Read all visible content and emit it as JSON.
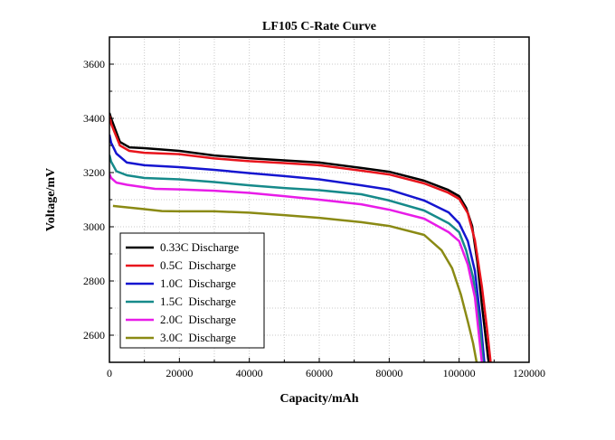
{
  "chart_data": {
    "type": "line",
    "title": "LF105 C-Rate Curve",
    "xlabel": "Capacity/mAh",
    "ylabel": "Voltage/mV",
    "xlim": [
      0,
      120000
    ],
    "ylim": [
      2500,
      3700
    ],
    "xticks": [
      0,
      20000,
      40000,
      60000,
      80000,
      100000,
      120000
    ],
    "yticks": [
      2600,
      2800,
      3000,
      3200,
      3400,
      3600
    ],
    "grid": true,
    "legend_position": "bottom-left",
    "series": [
      {
        "name": "0.33C Discharge",
        "color": "#000000",
        "x": [
          0,
          500,
          3000,
          5700,
          10000,
          20000,
          30000,
          40000,
          50000,
          60000,
          72000,
          80000,
          90000,
          96700,
          100000,
          102000,
          103700,
          105200,
          106500,
          108300,
          108500
        ],
        "y": [
          3420,
          3400,
          3313,
          3293,
          3290,
          3280,
          3263,
          3253,
          3245,
          3237,
          3217,
          3203,
          3170,
          3137,
          3113,
          3070,
          3003,
          2870,
          2713,
          2513,
          2500
        ]
      },
      {
        "name": "0.5C  Discharge",
        "color": "#e8141c",
        "x": [
          0,
          500,
          3000,
          5700,
          10000,
          20000,
          30000,
          40000,
          50000,
          60000,
          72000,
          80000,
          90000,
          96700,
          100000,
          102500,
          104500,
          106500,
          108000,
          109000
        ],
        "y": [
          3410,
          3380,
          3300,
          3280,
          3273,
          3268,
          3252,
          3242,
          3235,
          3227,
          3207,
          3193,
          3160,
          3127,
          3103,
          3050,
          2950,
          2780,
          2620,
          2500
        ]
      },
      {
        "name": "1.0C  Discharge",
        "color": "#1515d0",
        "x": [
          0,
          500,
          2000,
          5000,
          10000,
          20000,
          30000,
          40000,
          50000,
          60000,
          72000,
          80000,
          90000,
          97000,
          100000,
          102500,
          104500,
          106000,
          107200
        ],
        "y": [
          3340,
          3310,
          3270,
          3237,
          3227,
          3220,
          3210,
          3198,
          3187,
          3175,
          3153,
          3137,
          3097,
          3053,
          3013,
          2947,
          2837,
          2670,
          2500
        ]
      },
      {
        "name": "1.5C  Discharge",
        "color": "#168a8a",
        "x": [
          0,
          500,
          2000,
          5000,
          10000,
          20000,
          30000,
          40000,
          50000,
          60000,
          72000,
          80000,
          90000,
          97000,
          100000,
          102000,
          104000,
          106000,
          106800
        ],
        "y": [
          3265,
          3240,
          3205,
          3190,
          3180,
          3175,
          3165,
          3153,
          3143,
          3135,
          3120,
          3097,
          3060,
          3013,
          2980,
          2913,
          2813,
          2627,
          2500
        ]
      },
      {
        "name": "2.0C  Discharge",
        "color": "#e81ce8",
        "x": [
          0,
          500,
          2000,
          5000,
          13000,
          20000,
          30000,
          40000,
          50000,
          60000,
          72000,
          80000,
          90000,
          97000,
          100000,
          102500,
          104500,
          106500
        ],
        "y": [
          3195,
          3180,
          3163,
          3155,
          3140,
          3138,
          3133,
          3125,
          3113,
          3100,
          3083,
          3063,
          3030,
          2980,
          2947,
          2860,
          2740,
          2500
        ]
      },
      {
        "name": "3.0C  Discharge",
        "color": "#8a8a14",
        "x": [
          1000,
          10000,
          15000,
          20000,
          30000,
          40000,
          50000,
          60000,
          72000,
          80000,
          90000,
          95000,
          98000,
          100500,
          102500,
          104000,
          105000
        ],
        "y": [
          3077,
          3065,
          3058,
          3057,
          3057,
          3052,
          3043,
          3033,
          3017,
          3003,
          2970,
          2913,
          2847,
          2750,
          2650,
          2570,
          2500
        ]
      }
    ]
  }
}
